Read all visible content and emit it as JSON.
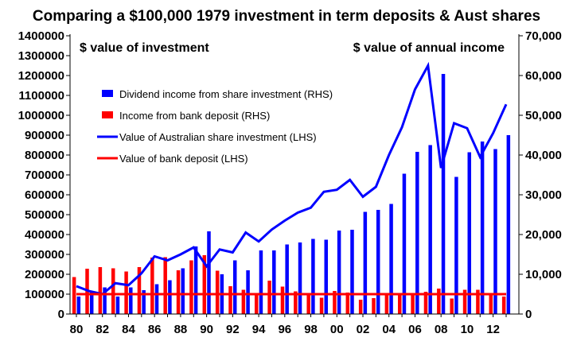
{
  "chart_data": {
    "type": "bar",
    "title": "Comparing a $100,000 1979 investment in term deposits & Aust shares",
    "left_axis_label": "$ value of investment",
    "right_axis_label": "$ value of annual income",
    "x": [
      1980,
      1981,
      1982,
      1983,
      1984,
      1985,
      1986,
      1987,
      1988,
      1989,
      1990,
      1991,
      1992,
      1993,
      1994,
      1995,
      1996,
      1997,
      1998,
      1999,
      2000,
      2001,
      2002,
      2003,
      2004,
      2005,
      2006,
      2007,
      2008,
      2009,
      2010,
      2011,
      2012,
      2013
    ],
    "x_tick_labels": [
      "80",
      "82",
      "84",
      "86",
      "88",
      "90",
      "92",
      "94",
      "96",
      "98",
      "00",
      "02",
      "04",
      "06",
      "08",
      "10",
      "12"
    ],
    "y_left_lim": [
      0,
      1400000
    ],
    "y_left_ticks": [
      "0",
      "100000",
      "200000",
      "300000",
      "400000",
      "500000",
      "600000",
      "700000",
      "800000",
      "900000",
      "1000000",
      "1100000",
      "1200000",
      "1300000",
      "1400000"
    ],
    "y_right_lim": [
      0,
      70000
    ],
    "y_right_ticks": [
      "0",
      "10,000",
      "20,000",
      "30,000",
      "40,000",
      "50,000",
      "60,000",
      "70,000"
    ],
    "legend_placement": "upper-left",
    "grid": false,
    "series": [
      {
        "name": "Dividend income from share investment (RHS)",
        "type": "bar",
        "axis": "right",
        "color": "#0000ff",
        "values": [
          4400,
          5800,
          6700,
          4400,
          6700,
          6000,
          7500,
          8500,
          11500,
          17000,
          20800,
          10000,
          13500,
          11000,
          16000,
          16000,
          17500,
          18000,
          18900,
          18700,
          21000,
          21200,
          25700,
          26200,
          27700,
          35300,
          40800,
          42500,
          60400,
          34500,
          40700,
          43400,
          41500,
          45000
        ]
      },
      {
        "name": "Income from bank deposit (RHS)",
        "type": "bar",
        "axis": "right",
        "color": "#ff0000",
        "values": [
          9300,
          11400,
          11800,
          11500,
          10700,
          11800,
          14200,
          14300,
          11000,
          13500,
          14800,
          10900,
          7000,
          6100,
          5300,
          8400,
          6900,
          5700,
          4700,
          4100,
          5800,
          5400,
          3600,
          4000,
          4700,
          5300,
          5200,
          5600,
          6400,
          3900,
          6100,
          6100,
          4900,
          4400
        ]
      },
      {
        "name": "Value of Australian share investment (LHS)",
        "type": "line",
        "axis": "left",
        "color": "#0000ff",
        "values": [
          140000,
          115000,
          100000,
          155000,
          145000,
          205000,
          290000,
          270000,
          300000,
          335000,
          240000,
          325000,
          310000,
          410000,
          365000,
          425000,
          470000,
          510000,
          535000,
          615000,
          625000,
          675000,
          590000,
          640000,
          800000,
          940000,
          1130000,
          1250000,
          735000,
          960000,
          935000,
          790000,
          910000,
          1055000
        ]
      },
      {
        "name": "Value of bank deposit (LHS)",
        "type": "line",
        "axis": "left",
        "color": "#ff0000",
        "values": [
          100000,
          100000,
          100000,
          100000,
          100000,
          100000,
          100000,
          100000,
          100000,
          100000,
          100000,
          100000,
          100000,
          100000,
          100000,
          100000,
          100000,
          100000,
          100000,
          100000,
          100000,
          100000,
          100000,
          100000,
          100000,
          100000,
          100000,
          100000,
          100000,
          100000,
          100000,
          100000,
          100000,
          100000
        ]
      }
    ]
  }
}
